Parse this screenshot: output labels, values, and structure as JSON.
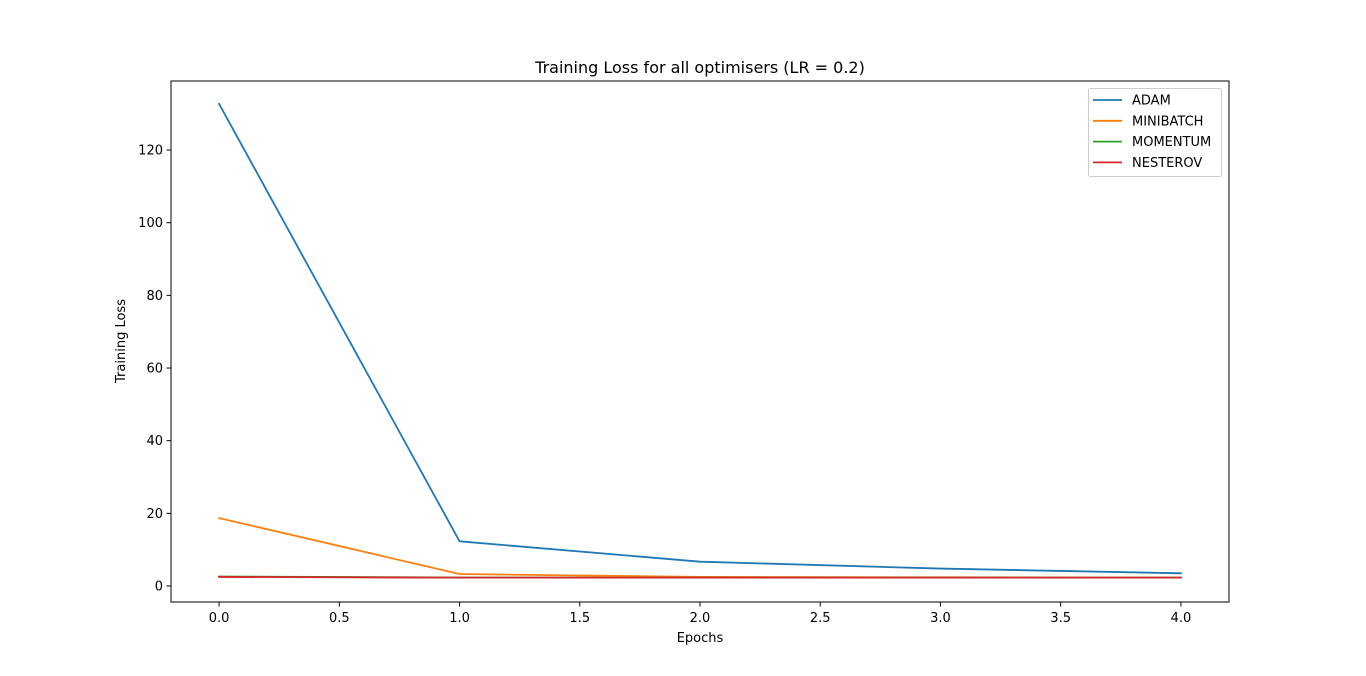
{
  "chart_data": {
    "type": "line",
    "title": "Training Loss for all optimisers (LR = 0.2)",
    "xlabel": "Epochs",
    "ylabel": "Training Loss",
    "x": [
      0,
      1,
      2,
      3,
      4
    ],
    "xlim": [
      -0.2,
      4.2
    ],
    "ylim": [
      -4.4,
      139.0
    ],
    "xticks": [
      0.0,
      0.5,
      1.0,
      1.5,
      2.0,
      2.5,
      3.0,
      3.5,
      4.0
    ],
    "xtick_labels": [
      "0.0",
      "0.5",
      "1.0",
      "1.5",
      "2.0",
      "2.5",
      "3.0",
      "3.5",
      "4.0"
    ],
    "yticks": [
      0,
      20,
      40,
      60,
      80,
      100,
      120
    ],
    "ytick_labels": [
      "0",
      "20",
      "40",
      "60",
      "80",
      "100",
      "120"
    ],
    "grid": false,
    "legend_position": "top-right",
    "series": [
      {
        "name": "ADAM",
        "color": "#1f77b4",
        "values": [
          132.7,
          12.3,
          6.7,
          4.8,
          3.5
        ]
      },
      {
        "name": "MINIBATCH",
        "color": "#ff7f0e",
        "values": [
          18.7,
          3.3,
          2.5,
          2.4,
          2.3
        ]
      },
      {
        "name": "MOMENTUM",
        "color": "#2ca02c",
        "values": [
          2.6,
          2.35,
          2.3,
          2.3,
          2.3
        ]
      },
      {
        "name": "NESTEROV",
        "color": "#d62728",
        "values": [
          2.5,
          2.3,
          2.3,
          2.3,
          2.3
        ]
      }
    ]
  }
}
